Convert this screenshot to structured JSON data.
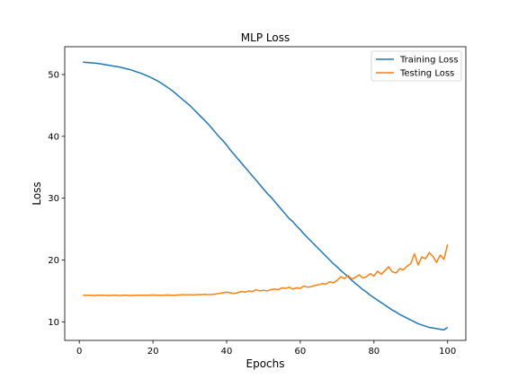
{
  "chart_data": {
    "type": "line",
    "title": "MLP Loss",
    "xlabel": "Epochs",
    "ylabel": "Loss",
    "xlim": [
      -3.95,
      104.95
    ],
    "ylim": [
      7.0,
      54.5
    ],
    "xticks": [
      0,
      20,
      40,
      60,
      80,
      100
    ],
    "yticks": [
      10,
      20,
      30,
      40,
      50
    ],
    "grid": false,
    "legend_position": "top-right",
    "series": [
      {
        "name": "Training Loss",
        "color": "#1f77b4",
        "x": [
          1,
          2,
          3,
          4,
          5,
          6,
          7,
          8,
          9,
          10,
          11,
          12,
          13,
          14,
          15,
          16,
          17,
          18,
          19,
          20,
          21,
          22,
          23,
          24,
          25,
          26,
          27,
          28,
          29,
          30,
          31,
          32,
          33,
          34,
          35,
          36,
          37,
          38,
          39,
          40,
          41,
          42,
          43,
          44,
          45,
          46,
          47,
          48,
          49,
          50,
          51,
          52,
          53,
          54,
          55,
          56,
          57,
          58,
          59,
          60,
          61,
          62,
          63,
          64,
          65,
          66,
          67,
          68,
          69,
          70,
          71,
          72,
          73,
          74,
          75,
          76,
          77,
          78,
          79,
          80,
          81,
          82,
          83,
          84,
          85,
          86,
          87,
          88,
          89,
          90,
          91,
          92,
          93,
          94,
          95,
          96,
          97,
          98,
          99,
          100
        ],
        "y": [
          52.0,
          51.95,
          51.9,
          51.85,
          51.8,
          51.7,
          51.6,
          51.5,
          51.4,
          51.3,
          51.2,
          51.05,
          50.9,
          50.75,
          50.55,
          50.35,
          50.15,
          49.9,
          49.65,
          49.35,
          49.05,
          48.7,
          48.3,
          47.9,
          47.5,
          47.0,
          46.5,
          46.0,
          45.5,
          45.0,
          44.4,
          43.8,
          43.2,
          42.6,
          42.0,
          41.3,
          40.6,
          39.9,
          39.3,
          38.6,
          37.8,
          37.1,
          36.4,
          35.7,
          35.0,
          34.3,
          33.6,
          32.9,
          32.2,
          31.5,
          30.8,
          30.2,
          29.5,
          28.8,
          28.1,
          27.4,
          26.7,
          26.2,
          25.5,
          24.9,
          24.2,
          23.6,
          23.0,
          22.4,
          21.8,
          21.2,
          20.6,
          20.0,
          19.4,
          18.9,
          18.3,
          17.8,
          17.3,
          16.7,
          16.2,
          15.7,
          15.2,
          14.8,
          14.3,
          13.9,
          13.5,
          13.1,
          12.7,
          12.3,
          11.9,
          11.6,
          11.2,
          10.9,
          10.6,
          10.3,
          10.0,
          9.7,
          9.5,
          9.3,
          9.1,
          9.0,
          8.9,
          8.8,
          8.7,
          9.1
        ]
      },
      {
        "name": "Testing Loss",
        "color": "#ff7f0e",
        "x": [
          1,
          2,
          3,
          4,
          5,
          6,
          7,
          8,
          9,
          10,
          11,
          12,
          13,
          14,
          15,
          16,
          17,
          18,
          19,
          20,
          21,
          22,
          23,
          24,
          25,
          26,
          27,
          28,
          29,
          30,
          31,
          32,
          33,
          34,
          35,
          36,
          37,
          38,
          39,
          40,
          41,
          42,
          43,
          44,
          45,
          46,
          47,
          48,
          49,
          50,
          51,
          52,
          53,
          54,
          55,
          56,
          57,
          58,
          59,
          60,
          61,
          62,
          63,
          64,
          65,
          66,
          67,
          68,
          69,
          70,
          71,
          72,
          73,
          74,
          75,
          76,
          77,
          78,
          79,
          80,
          81,
          82,
          83,
          84,
          85,
          86,
          87,
          88,
          89,
          90,
          91,
          92,
          93,
          94,
          95,
          96,
          97,
          98,
          99,
          100
        ],
        "y": [
          14.3,
          14.3,
          14.3,
          14.25,
          14.3,
          14.3,
          14.3,
          14.25,
          14.3,
          14.3,
          14.25,
          14.3,
          14.3,
          14.25,
          14.3,
          14.3,
          14.3,
          14.3,
          14.3,
          14.35,
          14.3,
          14.3,
          14.3,
          14.35,
          14.3,
          14.3,
          14.35,
          14.4,
          14.35,
          14.4,
          14.35,
          14.4,
          14.4,
          14.45,
          14.4,
          14.45,
          14.5,
          14.6,
          14.7,
          14.8,
          14.7,
          14.6,
          14.7,
          14.9,
          14.8,
          15.0,
          14.9,
          15.2,
          15.0,
          15.1,
          15.0,
          15.2,
          15.3,
          15.2,
          15.5,
          15.4,
          15.6,
          15.3,
          15.5,
          15.4,
          15.8,
          15.6,
          15.7,
          15.9,
          16.0,
          16.2,
          16.1,
          16.5,
          16.3,
          16.7,
          17.3,
          17.0,
          17.5,
          16.9,
          17.2,
          17.6,
          17.1,
          17.3,
          17.8,
          17.4,
          18.2,
          17.7,
          18.3,
          18.9,
          18.1,
          17.9,
          18.6,
          18.4,
          19.0,
          19.4,
          21.0,
          19.2,
          20.5,
          20.2,
          21.2,
          20.6,
          19.6,
          20.8,
          20.1,
          22.5
        ]
      }
    ]
  }
}
